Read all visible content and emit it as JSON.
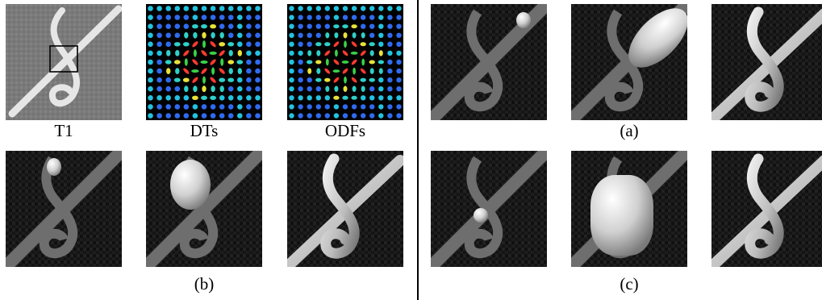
{
  "captions": {
    "t1": "T1",
    "dts": "DTs",
    "odfs": "ODFs",
    "a": "(a)",
    "b": "(b)",
    "c": "(c)"
  },
  "colors": {
    "background_noise": "#1b1b1b",
    "tract_gray": "#707070",
    "surface": "#d8d8d8",
    "t1_background": "#7a7a7a"
  }
}
